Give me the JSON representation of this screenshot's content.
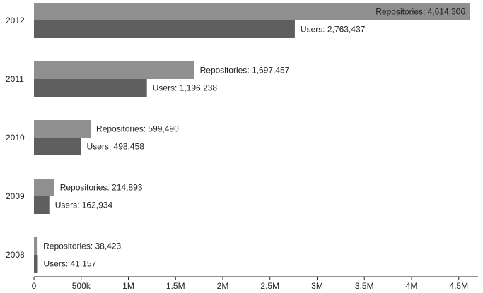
{
  "chart_data": {
    "type": "bar",
    "orientation": "horizontal",
    "categories": [
      "2012",
      "2011",
      "2010",
      "2009",
      "2008"
    ],
    "series": [
      {
        "name": "Repositories",
        "values": [
          4614306,
          1697457,
          599490,
          214893,
          38423
        ],
        "labels": [
          "Repositories: 4,614,306",
          "Repositories: 1,697,457",
          "Repositories: 599,490",
          "Repositories: 214,893",
          "Repositories: 38,423"
        ],
        "color": "#8f8f8f"
      },
      {
        "name": "Users",
        "values": [
          2763437,
          1196238,
          498458,
          162934,
          41157
        ],
        "labels": [
          "Users: 2,763,437",
          "Users: 1,196,238",
          "Users: 498,458",
          "Users: 162,934",
          "Users: 41,157"
        ],
        "color": "#5e5e5e"
      }
    ],
    "x_ticks": [
      {
        "value": 0,
        "label": "0"
      },
      {
        "value": 500000,
        "label": "500k"
      },
      {
        "value": 1000000,
        "label": "1M"
      },
      {
        "value": 1500000,
        "label": "1.5M"
      },
      {
        "value": 2000000,
        "label": "2M"
      },
      {
        "value": 2500000,
        "label": "2.5M"
      },
      {
        "value": 3000000,
        "label": "3M"
      },
      {
        "value": 3500000,
        "label": "3.5M"
      },
      {
        "value": 4000000,
        "label": "4M"
      },
      {
        "value": 4500000,
        "label": "4.5M"
      }
    ],
    "xlim": [
      0,
      4700000
    ],
    "grid": false,
    "title": "",
    "xlabel": "",
    "ylabel": ""
  }
}
